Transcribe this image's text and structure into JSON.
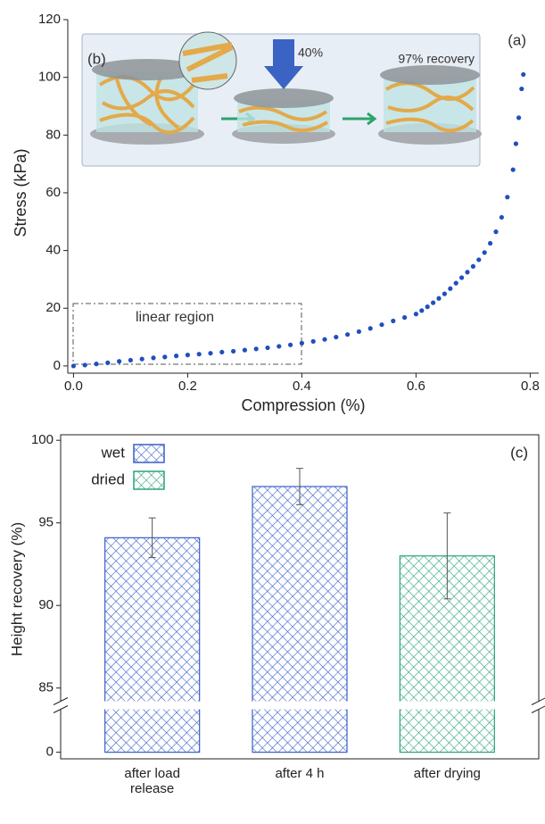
{
  "chart_data": [
    {
      "type": "scatter",
      "xlabel": "Compression (%)",
      "ylabel": "Stress (kPa)",
      "annotations": [
        "(a)",
        "(b)",
        "40%",
        "97% recovery",
        "linear region"
      ],
      "color": "#1f4fbf",
      "x": [
        0,
        0.02,
        0.04,
        0.06,
        0.08,
        0.1,
        0.12,
        0.14,
        0.16,
        0.18,
        0.2,
        0.22,
        0.24,
        0.26,
        0.28,
        0.3,
        0.32,
        0.34,
        0.36,
        0.38,
        0.4,
        0.42,
        0.44,
        0.46,
        0.48,
        0.5,
        0.52,
        0.54,
        0.56,
        0.58,
        0.6,
        0.61,
        0.62,
        0.63,
        0.64,
        0.65,
        0.66,
        0.67,
        0.68,
        0.69,
        0.7,
        0.71,
        0.72,
        0.73,
        0.74,
        0.75,
        0.76,
        0.77,
        0.775,
        0.78,
        0.785,
        0.788
      ],
      "values": [
        0,
        0.3,
        0.7,
        1.1,
        1.6,
        2.0,
        2.4,
        2.8,
        3.1,
        3.5,
        3.8,
        4.1,
        4.4,
        4.8,
        5.1,
        5.5,
        5.9,
        6.3,
        6.8,
        7.3,
        7.9,
        8.5,
        9.2,
        10.0,
        10.9,
        11.9,
        13.0,
        14.3,
        15.6,
        16.8,
        18.0,
        19.2,
        20.5,
        21.9,
        23.4,
        25.0,
        26.8,
        28.7,
        30.6,
        32.5,
        34.5,
        36.8,
        39.3,
        42.5,
        46.5,
        51.5,
        58.5,
        68.0,
        77.0,
        86.0,
        96.0,
        101.0
      ],
      "xlim": [
        -0.01,
        0.815
      ],
      "ylim": [
        -2.5,
        120
      ],
      "xticks": [
        {
          "value": 0,
          "label": "0.0"
        },
        0.2,
        0.4,
        0.6,
        0.8
      ],
      "yticks": [
        0,
        20,
        40,
        60,
        80,
        100,
        120
      ]
    },
    {
      "type": "bar",
      "ylabel": "Height recovery (%)",
      "annotations": [
        "(c)"
      ],
      "categories": [
        "after load\nrelease",
        "after 4 h",
        "after drying"
      ],
      "series": [
        {
          "name": "wet",
          "color": "#3a5fc8",
          "values": [
            94.1,
            97.2,
            null
          ],
          "errors": [
            1.2,
            1.1,
            null
          ]
        },
        {
          "name": "dried",
          "color": "#2aa37a",
          "values": [
            null,
            null,
            93.0
          ],
          "errors": [
            null,
            null,
            2.6
          ]
        }
      ],
      "ylim": [
        -0.4,
        100.3
      ],
      "axis_break": [
        2.6,
        84.2
      ],
      "yticks": [
        0,
        85,
        90,
        95,
        100
      ]
    }
  ]
}
